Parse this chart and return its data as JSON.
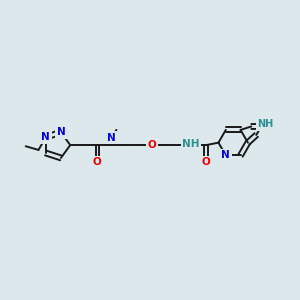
{
  "bg_color": "#dce8ec",
  "bond_color": "#1a1a1a",
  "bond_width": 1.4,
  "atom_colors": {
    "N": "#0000ee",
    "O": "#ee0000",
    "NH_teal": "#2a9090",
    "C": "#1a1a1a"
  },
  "font_size": 7.5,
  "font_size_small": 6.8
}
